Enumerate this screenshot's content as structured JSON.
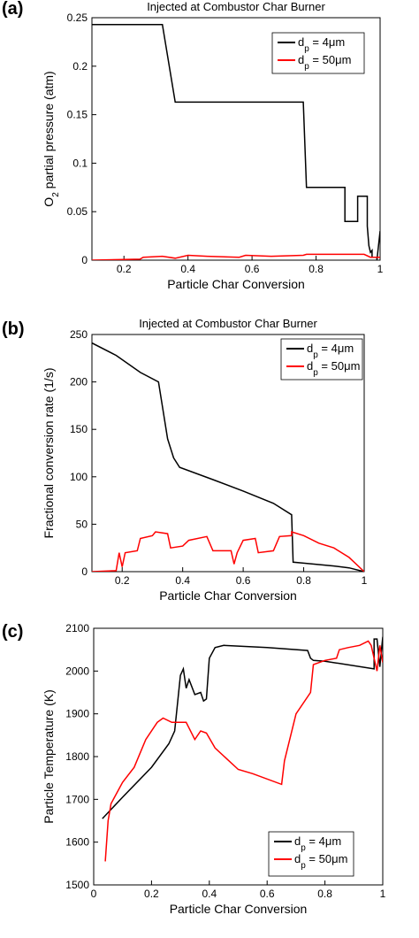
{
  "chart_data": [
    {
      "type": "line",
      "panel_label": "(a)",
      "title": "Injected at Combustor Char Burner",
      "xlabel": "Particle Char Conversion",
      "ylabel": "O2 partial pressure (atm)",
      "ylabel_parts": [
        "O",
        "2",
        " partial pressure (atm)"
      ],
      "xlim": [
        0.1,
        1.0
      ],
      "ylim": [
        0,
        0.25
      ],
      "xticks": [
        0.2,
        0.4,
        0.6,
        0.8,
        1
      ],
      "yticks": [
        0,
        0.05,
        0.1,
        0.15,
        0.2,
        0.25
      ],
      "legend_position": "top-right",
      "series": [
        {
          "legend": [
            "d",
            "p",
            " = 4",
            "μ",
            "m"
          ],
          "color": "#000000",
          "x": [
            0.1,
            0.32,
            0.36,
            0.76,
            0.77,
            0.89,
            0.89,
            0.93,
            0.93,
            0.96,
            0.96,
            0.965,
            0.97,
            0.975,
            0.975,
            0.99,
            0.99,
            1.0
          ],
          "y": [
            0.243,
            0.243,
            0.163,
            0.163,
            0.075,
            0.075,
            0.04,
            0.04,
            0.066,
            0.066,
            0.035,
            0.015,
            0.008,
            0.01,
            0.003,
            0.003,
            0.0,
            0.03
          ]
        },
        {
          "legend": [
            "d",
            "p",
            " = 50",
            "μ",
            "m"
          ],
          "color": "#ff0000",
          "x": [
            0.1,
            0.25,
            0.26,
            0.32,
            0.36,
            0.4,
            0.46,
            0.56,
            0.58,
            0.66,
            0.76,
            0.77,
            0.85,
            0.95,
            0.97,
            1.0
          ],
          "y": [
            0.0,
            0.001,
            0.003,
            0.004,
            0.002,
            0.005,
            0.004,
            0.003,
            0.005,
            0.004,
            0.005,
            0.006,
            0.006,
            0.006,
            0.003,
            0.003
          ]
        }
      ]
    },
    {
      "type": "line",
      "panel_label": "(b)",
      "title": "Injected at Combustor Char Burner",
      "xlabel": "Particle Char Conversion",
      "ylabel": "Fractional conversion rate (1/s)",
      "xlim": [
        0.1,
        1.0
      ],
      "ylim": [
        0,
        250
      ],
      "xticks": [
        0.2,
        0.4,
        0.6,
        0.8,
        1
      ],
      "yticks": [
        0,
        50,
        100,
        150,
        200,
        250
      ],
      "legend_position": "top-right",
      "series": [
        {
          "legend": [
            "d",
            "p",
            " = 4",
            "μ",
            "m"
          ],
          "color": "#000000",
          "x": [
            0.1,
            0.18,
            0.26,
            0.32,
            0.35,
            0.37,
            0.39,
            0.5,
            0.6,
            0.7,
            0.76,
            0.765,
            0.8,
            0.9,
            0.95,
            1.0
          ],
          "y": [
            241,
            228,
            210,
            200,
            140,
            120,
            110,
            97,
            85,
            72,
            60,
            10,
            9,
            6,
            4,
            0
          ]
        },
        {
          "legend": [
            "d",
            "p",
            " = 50",
            "μ",
            "m"
          ],
          "color": "#ff0000",
          "x": [
            0.1,
            0.18,
            0.19,
            0.2,
            0.21,
            0.25,
            0.26,
            0.3,
            0.31,
            0.35,
            0.36,
            0.4,
            0.42,
            0.48,
            0.5,
            0.56,
            0.57,
            0.58,
            0.6,
            0.64,
            0.65,
            0.7,
            0.72,
            0.76,
            0.76,
            0.8,
            0.85,
            0.9,
            0.95,
            1.0
          ],
          "y": [
            0,
            1,
            20,
            5,
            20,
            22,
            35,
            38,
            42,
            40,
            25,
            27,
            33,
            37,
            22,
            22,
            8,
            20,
            33,
            35,
            20,
            22,
            37,
            38,
            42,
            38,
            30,
            25,
            15,
            0
          ]
        }
      ]
    },
    {
      "type": "line",
      "panel_label": "(c)",
      "title": "",
      "xlabel": "Particle Char Conversion",
      "ylabel": "Particle Temperature (K)",
      "xlim": [
        0,
        1
      ],
      "ylim": [
        1500,
        2100
      ],
      "xticks": [
        0,
        0.2,
        0.4,
        0.6,
        0.8,
        1
      ],
      "yticks": [
        1500,
        1600,
        1700,
        1800,
        1900,
        2000,
        2100
      ],
      "legend_position": "bottom-right",
      "series": [
        {
          "legend": [
            "d",
            "p",
            " = 4",
            "μ",
            "m"
          ],
          "color": "#000000",
          "x": [
            0.03,
            0.1,
            0.2,
            0.26,
            0.28,
            0.3,
            0.31,
            0.32,
            0.33,
            0.35,
            0.37,
            0.38,
            0.39,
            0.4,
            0.42,
            0.45,
            0.6,
            0.74,
            0.75,
            0.76,
            0.8,
            0.97,
            0.97,
            0.98,
            0.99,
            1.0
          ],
          "y": [
            1655,
            1705,
            1775,
            1830,
            1860,
            1990,
            2005,
            1960,
            1980,
            1945,
            1950,
            1930,
            1935,
            2030,
            2055,
            2060,
            2055,
            2048,
            2030,
            2025,
            2023,
            2005,
            2075,
            2075,
            2010,
            2080
          ]
        },
        {
          "legend": [
            "d",
            "p",
            " = 50",
            "μ",
            "m"
          ],
          "color": "#ff0000",
          "x": [
            0.04,
            0.05,
            0.06,
            0.1,
            0.14,
            0.18,
            0.22,
            0.24,
            0.27,
            0.32,
            0.35,
            0.37,
            0.39,
            0.42,
            0.5,
            0.55,
            0.65,
            0.66,
            0.7,
            0.75,
            0.76,
            0.8,
            0.84,
            0.85,
            0.88,
            0.92,
            0.95,
            0.96,
            0.97,
            0.98,
            0.99,
            1.0
          ],
          "y": [
            1555,
            1650,
            1690,
            1740,
            1775,
            1840,
            1880,
            1890,
            1880,
            1880,
            1840,
            1860,
            1855,
            1820,
            1770,
            1760,
            1735,
            1790,
            1900,
            1950,
            2015,
            2025,
            2030,
            2050,
            2055,
            2060,
            2070,
            2060,
            2030,
            2000,
            2060,
            2020
          ]
        }
      ]
    }
  ]
}
